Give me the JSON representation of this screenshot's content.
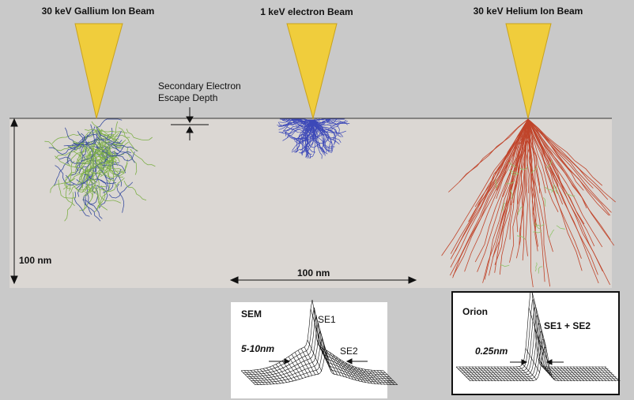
{
  "beams": {
    "gallium": "30 keV Gallium Ion Beam",
    "electron": "1 keV electron Beam",
    "helium": "30 keV Helium Ion Beam"
  },
  "escape_depth_label": [
    "Secondary Electron",
    "Escape Depth"
  ],
  "scale": {
    "vertical": "100 nm",
    "horizontal": "100 nm"
  },
  "sem_panel": {
    "title": "SEM",
    "peak_label": "SE1",
    "skirt_label": "SE2",
    "width_label": "5-10nm"
  },
  "orion_panel": {
    "title": "Orion",
    "peak_label": "SE1 + SE2",
    "width_label": "0.25nm"
  }
}
